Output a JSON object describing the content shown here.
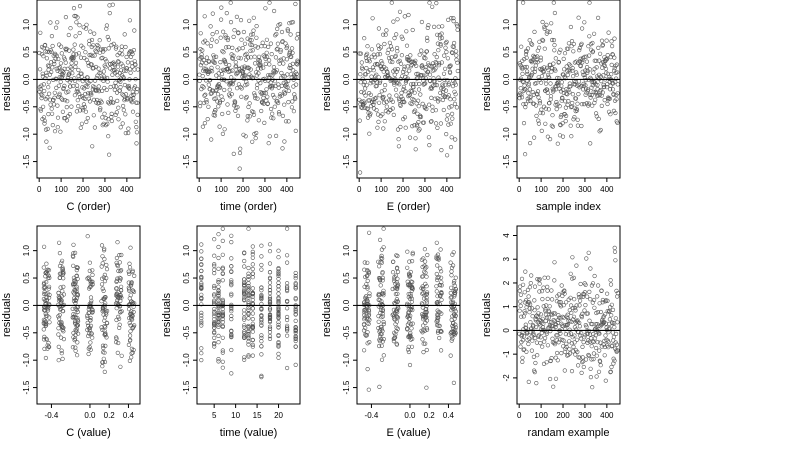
{
  "figure": {
    "background": "#ffffff",
    "point_color": "#555555",
    "point_shape": "open-circle"
  },
  "chart_data": [
    {
      "type": "scatter",
      "xlabel": "C (order)",
      "ylabel": "residuals",
      "xlim": [
        -10,
        460
      ],
      "ylim": [
        -1.8,
        1.45
      ],
      "xticks": [
        0,
        100,
        200,
        300,
        400
      ],
      "xtick_labels": [
        "0",
        "100",
        "200",
        "300",
        "400"
      ],
      "yticks": [
        -1.5,
        -1.0,
        -0.5,
        0.0,
        0.5,
        1.0
      ],
      "ytick_labels": [
        "-1.5",
        "-1.0",
        "-0.5",
        "0.0",
        "0.5",
        "1.0"
      ],
      "reference_line_y": 0,
      "grid": false,
      "points": {
        "n": 450,
        "x_kind": "index",
        "x_min": 1,
        "x_max": 450,
        "y_mean": 0,
        "y_sd": 0.5,
        "y_min": -1.7,
        "y_max": 1.4
      }
    },
    {
      "type": "scatter",
      "xlabel": "time (order)",
      "ylabel": "residuals",
      "xlim": [
        -10,
        460
      ],
      "ylim": [
        -1.8,
        1.45
      ],
      "xticks": [
        0,
        100,
        200,
        300,
        400
      ],
      "xtick_labels": [
        "0",
        "100",
        "200",
        "300",
        "400"
      ],
      "yticks": [
        -1.5,
        -1.0,
        -0.5,
        0.0,
        0.5,
        1.0
      ],
      "ytick_labels": [
        "-1.5",
        "-1.0",
        "-0.5",
        "0.0",
        "0.5",
        "1.0"
      ],
      "reference_line_y": 0,
      "grid": false,
      "points": {
        "n": 450,
        "x_kind": "index",
        "x_min": 1,
        "x_max": 450,
        "y_mean": 0,
        "y_sd": 0.5,
        "y_min": -1.7,
        "y_max": 1.4
      }
    },
    {
      "type": "scatter",
      "xlabel": "E (order)",
      "ylabel": "residuals",
      "xlim": [
        -10,
        460
      ],
      "ylim": [
        -1.8,
        1.45
      ],
      "xticks": [
        0,
        100,
        200,
        300,
        400
      ],
      "xtick_labels": [
        "0",
        "100",
        "200",
        "300",
        "400"
      ],
      "yticks": [
        -1.5,
        -1.0,
        -0.5,
        0.0,
        0.5,
        1.0
      ],
      "ytick_labels": [
        "-1.5",
        "-1.0",
        "-0.5",
        "0.0",
        "0.5",
        "1.0"
      ],
      "reference_line_y": 0,
      "grid": false,
      "points": {
        "n": 450,
        "x_kind": "index",
        "x_min": 1,
        "x_max": 450,
        "y_mean": 0,
        "y_sd": 0.5,
        "y_min": -1.7,
        "y_max": 1.4
      }
    },
    {
      "type": "scatter",
      "xlabel": "sample index",
      "ylabel": "residuals",
      "xlim": [
        -10,
        460
      ],
      "ylim": [
        -1.8,
        1.45
      ],
      "xticks": [
        0,
        100,
        200,
        300,
        400
      ],
      "xtick_labels": [
        "0",
        "100",
        "200",
        "300",
        "400"
      ],
      "yticks": [
        -1.5,
        -1.0,
        -0.5,
        0.0,
        0.5,
        1.0
      ],
      "ytick_labels": [
        "-1.5",
        "-1.0",
        "-0.5",
        "0.0",
        "0.5",
        "1.0"
      ],
      "reference_line_y": 0,
      "grid": false,
      "points": {
        "n": 450,
        "x_kind": "index",
        "x_min": 1,
        "x_max": 450,
        "y_mean": 0,
        "y_sd": 0.5,
        "y_min": -1.7,
        "y_max": 1.4
      }
    },
    {
      "type": "scatter",
      "xlabel": "C (value)",
      "ylabel": "residuals",
      "xlim": [
        -0.55,
        0.52
      ],
      "ylim": [
        -1.8,
        1.45
      ],
      "xticks": [
        -0.4,
        0.0,
        0.2,
        0.4
      ],
      "xtick_labels": [
        "-0.4",
        "0.0",
        "0.2",
        "0.4"
      ],
      "yticks": [
        -1.5,
        -1.0,
        -0.5,
        0.0,
        0.5,
        1.0
      ],
      "ytick_labels": [
        "-1.5",
        "-1.0",
        "-0.5",
        "0.0",
        "0.5",
        "1.0"
      ],
      "reference_line_y": 0,
      "grid": false,
      "points": {
        "n": 450,
        "x_kind": "clustered",
        "x_centers": [
          -0.45,
          -0.3,
          -0.15,
          0.0,
          0.15,
          0.3,
          0.43
        ],
        "y_mean": 0,
        "y_sd": 0.5,
        "y_min": -1.7,
        "y_max": 1.4
      }
    },
    {
      "type": "scatter",
      "xlabel": "time (value)",
      "ylabel": "residuals",
      "xlim": [
        1,
        25
      ],
      "ylim": [
        -1.8,
        1.45
      ],
      "xticks": [
        5,
        10,
        15,
        20
      ],
      "xtick_labels": [
        "5",
        "10",
        "15",
        "20"
      ],
      "yticks": [
        -1.5,
        -1.0,
        -0.5,
        0.0,
        0.5,
        1.0
      ],
      "ytick_labels": [
        "-1.5",
        "-1.0",
        "-0.5",
        "0.0",
        "0.5",
        "1.0"
      ],
      "reference_line_y": 0,
      "grid": false,
      "points": {
        "n": 450,
        "x_kind": "discrete",
        "x_values": [
          2,
          5,
          6,
          7,
          9,
          12,
          13,
          14,
          16,
          18,
          20,
          22,
          24
        ],
        "y_mean": 0,
        "y_sd": 0.5,
        "y_min": -1.7,
        "y_max": 1.4
      }
    },
    {
      "type": "scatter",
      "xlabel": "E (value)",
      "ylabel": "residuals",
      "xlim": [
        -0.55,
        0.52
      ],
      "ylim": [
        -1.8,
        1.45
      ],
      "xticks": [
        -0.4,
        0.0,
        0.2,
        0.4
      ],
      "xtick_labels": [
        "-0.4",
        "0.0",
        "0.2",
        "0.4"
      ],
      "yticks": [
        -1.5,
        -1.0,
        -0.5,
        0.0,
        0.5,
        1.0
      ],
      "ytick_labels": [
        "-1.5",
        "-1.0",
        "-0.5",
        "0.0",
        "0.5",
        "1.0"
      ],
      "reference_line_y": 0,
      "grid": false,
      "points": {
        "n": 450,
        "x_kind": "clustered",
        "x_centers": [
          -0.45,
          -0.3,
          -0.15,
          0.0,
          0.15,
          0.3,
          0.45
        ],
        "y_mean": 0,
        "y_sd": 0.5,
        "y_min": -1.7,
        "y_max": 1.4
      }
    },
    {
      "type": "scatter",
      "xlabel": "randam example",
      "ylabel": "residuals",
      "xlim": [
        -10,
        460
      ],
      "ylim": [
        -3.1,
        4.4
      ],
      "xticks": [
        0,
        100,
        200,
        300,
        400
      ],
      "xtick_labels": [
        "0",
        "100",
        "200",
        "300",
        "400"
      ],
      "yticks": [
        -2,
        -1,
        0,
        1,
        2,
        3,
        4
      ],
      "ytick_labels": [
        "-2",
        "-1",
        "0",
        "1",
        "2",
        "3",
        "4"
      ],
      "reference_line_y": 0,
      "grid": false,
      "points": {
        "n": 450,
        "x_kind": "index",
        "x_min": 1,
        "x_max": 450,
        "y_mean": 0.3,
        "y_sd": 1.0,
        "y_min": -2.9,
        "y_max": 4.1
      }
    }
  ]
}
